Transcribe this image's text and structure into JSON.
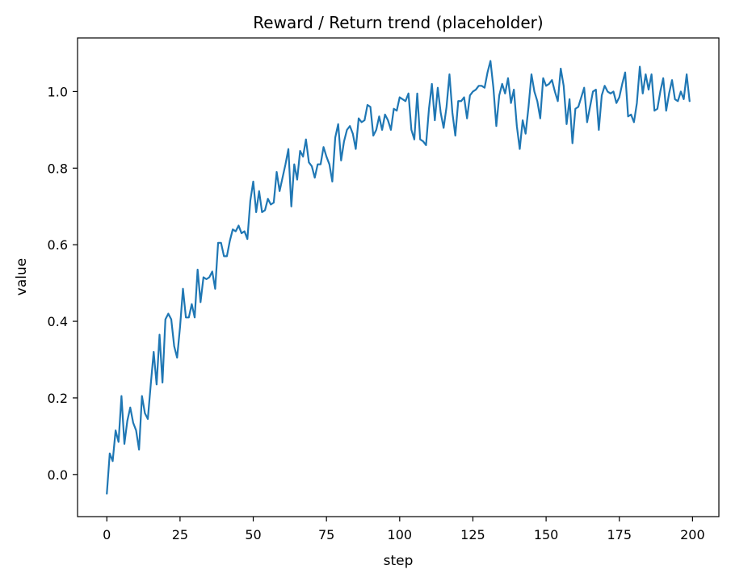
{
  "chart_data": {
    "type": "line",
    "title": "Reward / Return trend (placeholder)",
    "xlabel": "step",
    "ylabel": "value",
    "xlim": [
      -10,
      209
    ],
    "ylim": [
      -0.11,
      1.14
    ],
    "x_ticks": [
      0,
      25,
      50,
      75,
      100,
      125,
      150,
      175,
      200
    ],
    "y_ticks": [
      0.0,
      0.2,
      0.4,
      0.6,
      0.8,
      1.0
    ],
    "x_tick_labels": [
      "0",
      "25",
      "50",
      "75",
      "100",
      "125",
      "150",
      "175",
      "200"
    ],
    "y_tick_labels": [
      "0.0",
      "0.2",
      "0.4",
      "0.6",
      "0.8",
      "1.0"
    ],
    "grid": false,
    "legend": "none",
    "series_color": "#1f77b4",
    "x_start": 0,
    "x_step": 1,
    "values": [
      -0.05,
      0.055,
      0.035,
      0.115,
      0.085,
      0.205,
      0.08,
      0.14,
      0.175,
      0.135,
      0.115,
      0.065,
      0.205,
      0.16,
      0.145,
      0.235,
      0.32,
      0.235,
      0.365,
      0.24,
      0.405,
      0.42,
      0.405,
      0.335,
      0.305,
      0.385,
      0.485,
      0.41,
      0.41,
      0.445,
      0.41,
      0.535,
      0.45,
      0.515,
      0.51,
      0.515,
      0.53,
      0.485,
      0.605,
      0.605,
      0.57,
      0.57,
      0.61,
      0.64,
      0.635,
      0.65,
      0.63,
      0.635,
      0.615,
      0.715,
      0.765,
      0.685,
      0.74,
      0.685,
      0.69,
      0.72,
      0.705,
      0.71,
      0.79,
      0.74,
      0.775,
      0.81,
      0.85,
      0.7,
      0.81,
      0.77,
      0.845,
      0.83,
      0.875,
      0.815,
      0.805,
      0.775,
      0.81,
      0.81,
      0.855,
      0.83,
      0.81,
      0.765,
      0.88,
      0.915,
      0.82,
      0.87,
      0.9,
      0.91,
      0.89,
      0.85,
      0.93,
      0.92,
      0.925,
      0.965,
      0.96,
      0.885,
      0.9,
      0.935,
      0.9,
      0.94,
      0.925,
      0.9,
      0.955,
      0.95,
      0.985,
      0.98,
      0.975,
      0.995,
      0.9,
      0.875,
      0.995,
      0.875,
      0.87,
      0.86,
      0.955,
      1.02,
      0.925,
      1.01,
      0.945,
      0.905,
      0.96,
      1.045,
      0.945,
      0.885,
      0.975,
      0.975,
      0.985,
      0.93,
      0.99,
      1.0,
      1.005,
      1.015,
      1.015,
      1.01,
      1.05,
      1.08,
      1.01,
      0.91,
      0.99,
      1.02,
      0.995,
      1.035,
      0.97,
      1.005,
      0.91,
      0.85,
      0.925,
      0.89,
      0.96,
      1.045,
      1.0,
      0.975,
      0.93,
      1.035,
      1.015,
      1.02,
      1.03,
      1.0,
      0.975,
      1.06,
      1.015,
      0.915,
      0.98,
      0.865,
      0.955,
      0.96,
      0.985,
      1.01,
      0.92,
      0.96,
      1.0,
      1.005,
      0.9,
      0.99,
      1.015,
      1.0,
      0.995,
      1.0,
      0.97,
      0.985,
      1.02,
      1.05,
      0.935,
      0.94,
      0.92,
      0.97,
      1.065,
      0.995,
      1.045,
      1.005,
      1.045,
      0.95,
      0.955,
      1.0,
      1.035,
      0.95,
      0.995,
      1.03,
      0.98,
      0.975,
      1.0,
      0.98,
      1.045,
      0.975
    ]
  }
}
